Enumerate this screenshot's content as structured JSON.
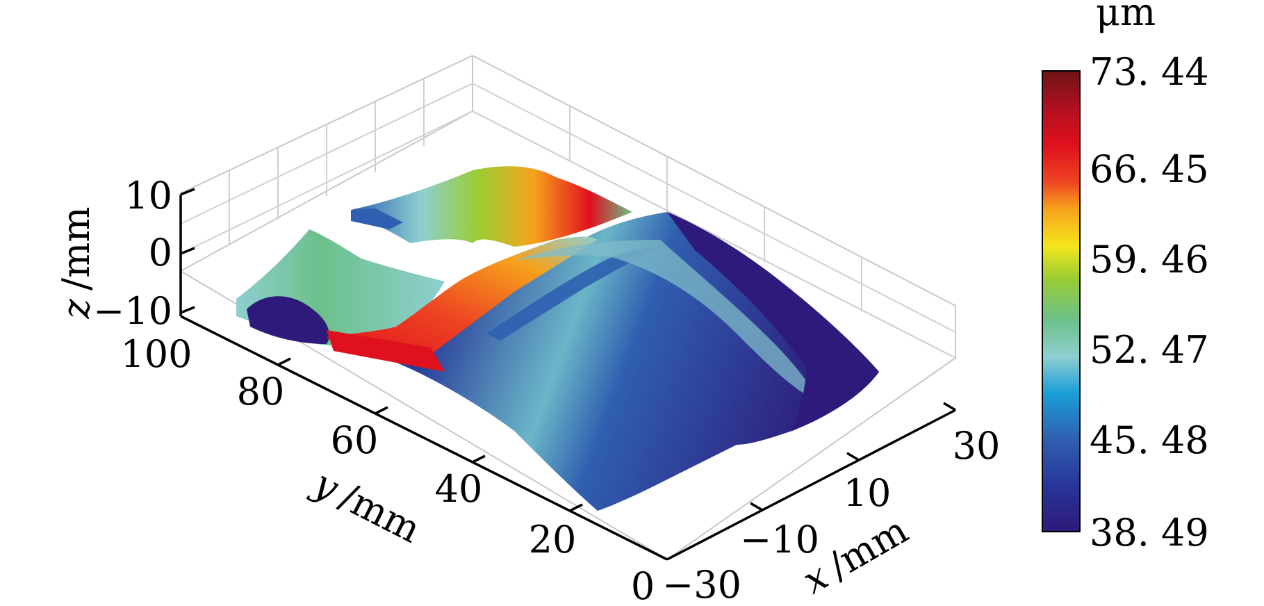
{
  "chart_data": {
    "type": "surface-3d",
    "x_axis": {
      "label_var": "x",
      "label_unit": "/mm",
      "ticks": [
        "−30",
        "−10",
        "10",
        "30"
      ],
      "range": [
        -30,
        30
      ]
    },
    "y_axis": {
      "label_var": "y",
      "label_unit": "/mm",
      "ticks": [
        "0",
        "20",
        "40",
        "60",
        "80",
        "100"
      ],
      "range": [
        0,
        100
      ]
    },
    "z_axis": {
      "label_var": "z",
      "label_unit": "/mm",
      "ticks": [
        "−10",
        "0",
        "10"
      ],
      "range": [
        -10,
        10
      ]
    },
    "colorbar": {
      "unit": "μm",
      "tick_labels": [
        "73. 44",
        "66. 45",
        "59. 46",
        "52. 47",
        "45. 48",
        "38. 49"
      ],
      "range": [
        38.49,
        73.44
      ],
      "colormap": [
        "#2e1a7a",
        "#283a9a",
        "#2f5fb0",
        "#1a9ed8",
        "#8ecfd0",
        "#6cc08a",
        "#9acd32",
        "#f5e61c",
        "#f6a21c",
        "#ee4422",
        "#e0101e",
        "#9c1020",
        "#6e1216"
      ]
    },
    "grid": true
  }
}
